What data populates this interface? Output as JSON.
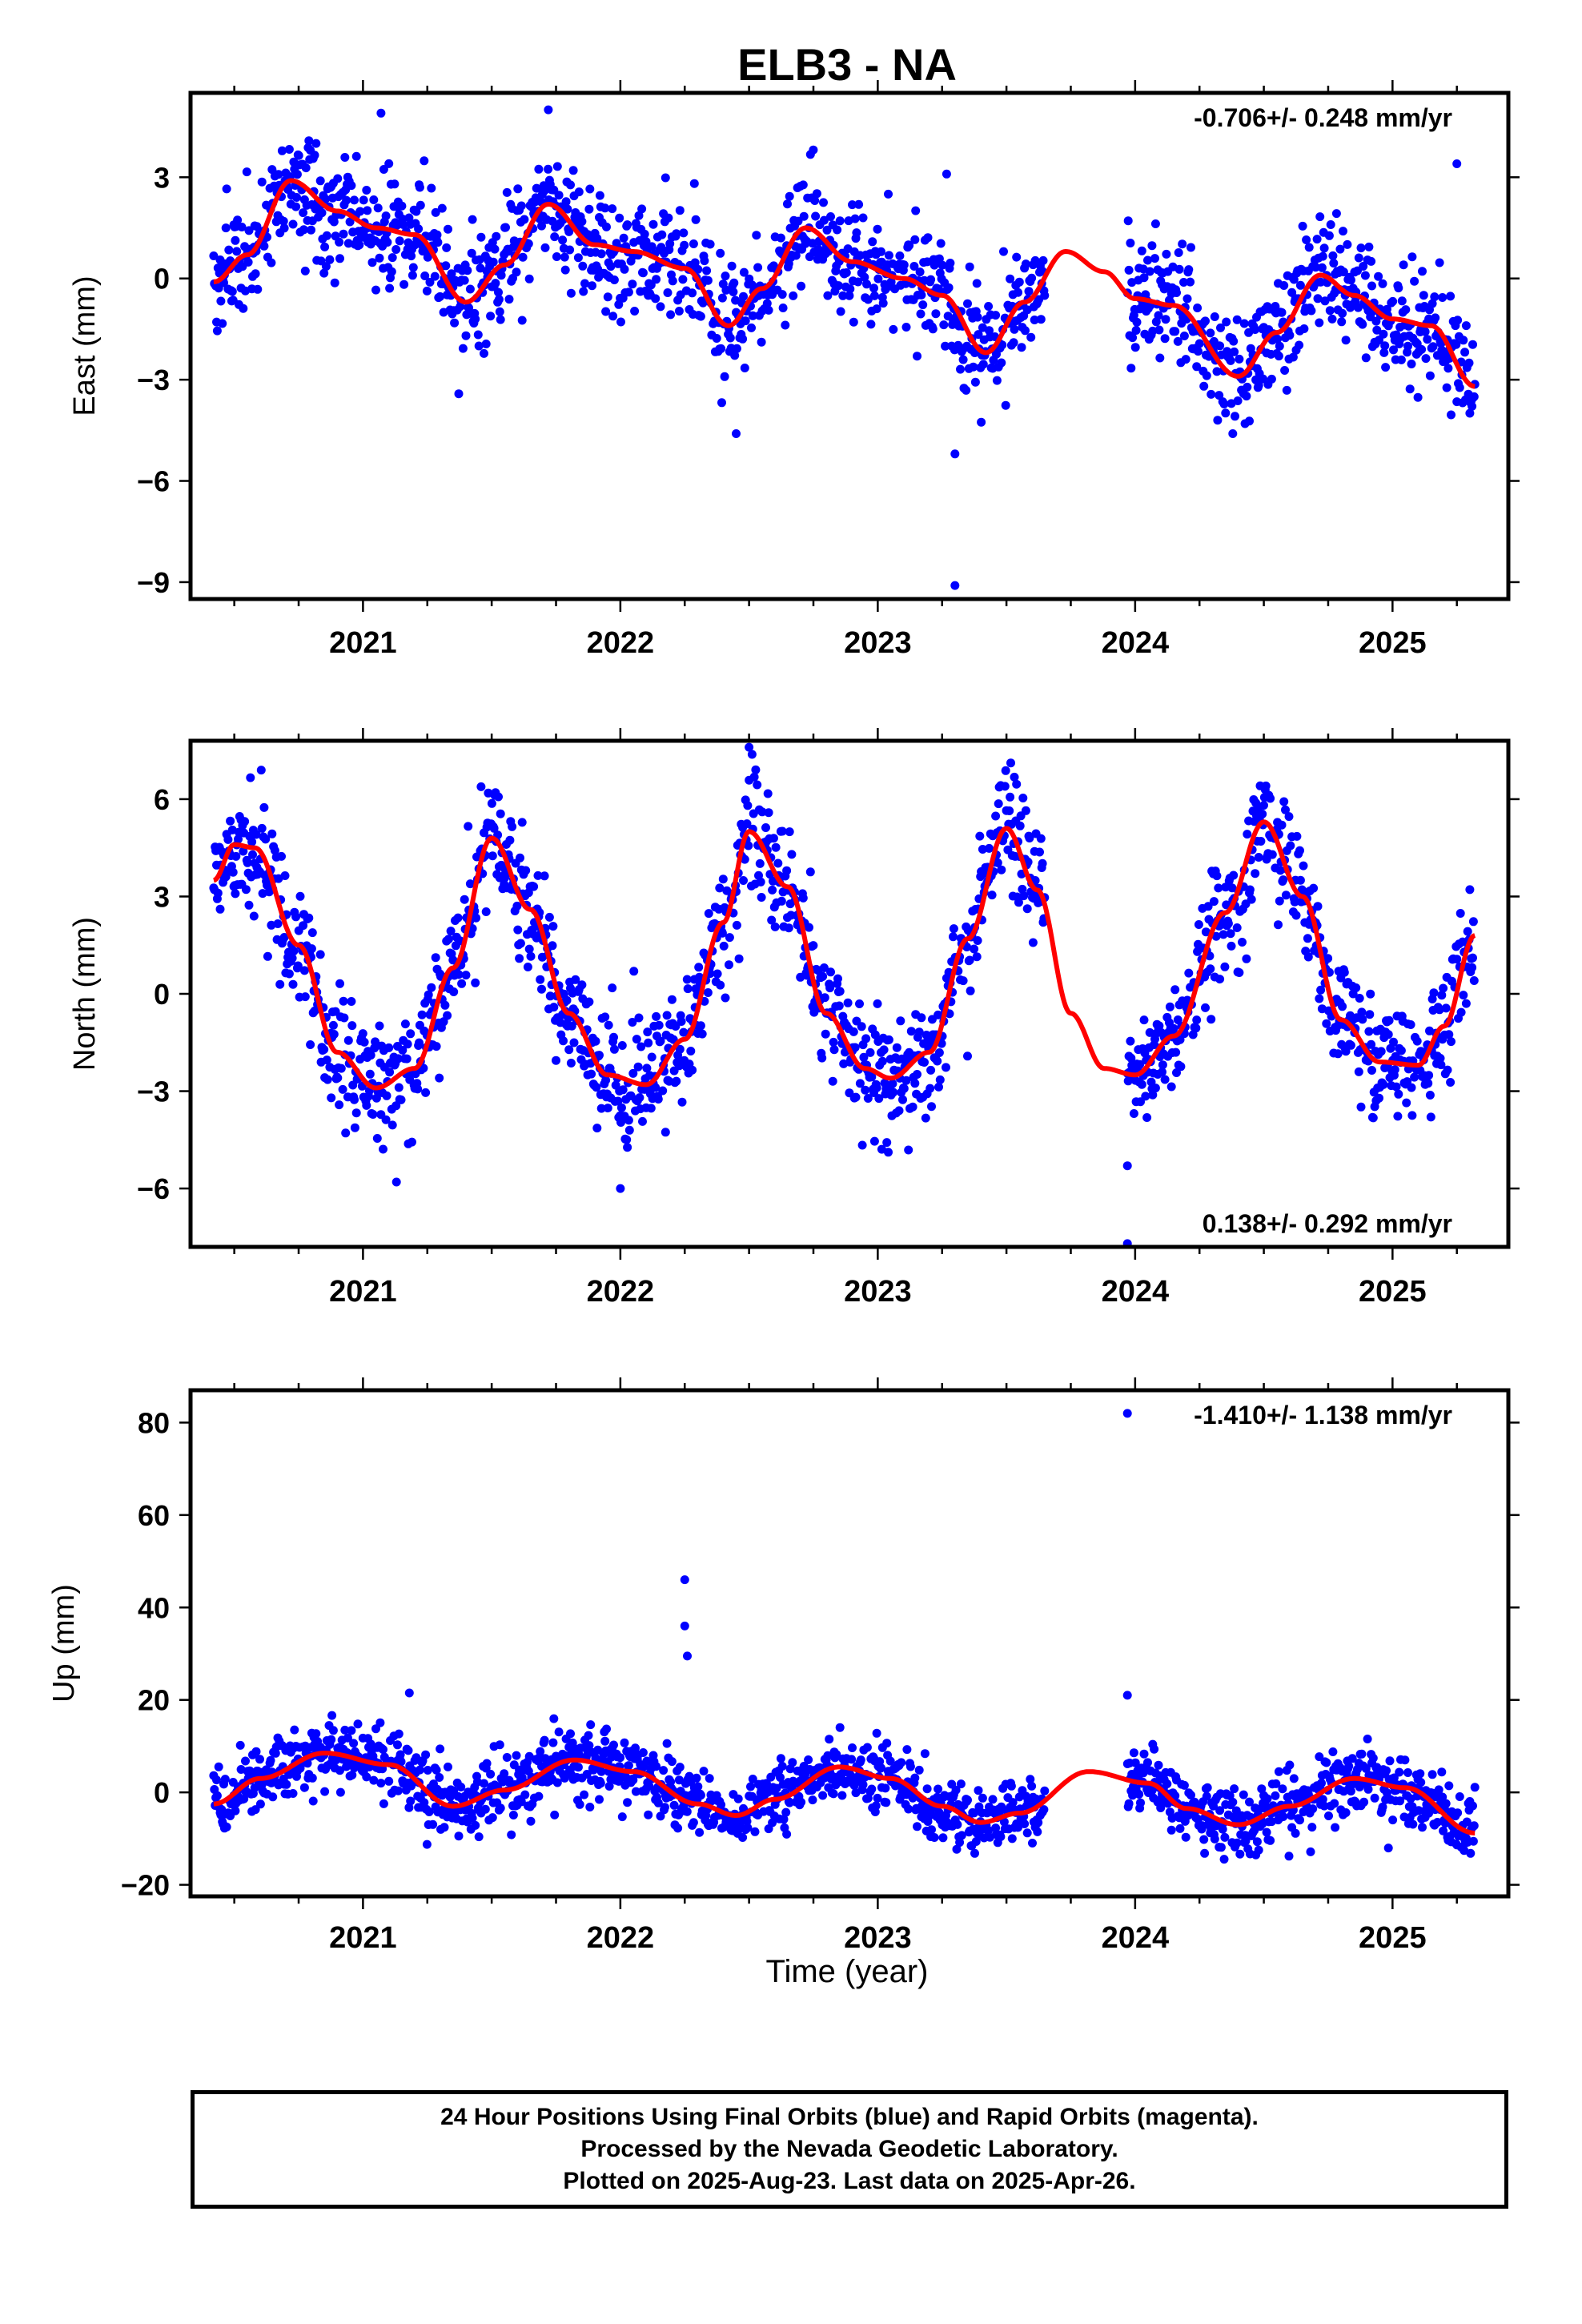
{
  "figure": {
    "title": "ELB3 - NA",
    "x_axis_label": "Time (year)",
    "x_ticks": [
      "2021",
      "2022",
      "2023",
      "2024",
      "2025"
    ],
    "footer_lines": [
      "24 Hour Positions Using Final Orbits (blue) and Rapid Orbits (magenta).",
      "Processed by the Nevada Geodetic Laboratory.",
      "Plotted on 2025-Aug-23. Last data on 2025-Apr-26."
    ],
    "colors": {
      "points": "#0000ff",
      "fit": "#ff0000",
      "frame": "#000000"
    }
  },
  "chart_data": [
    {
      "type": "scatter",
      "ylabel": "East (mm)",
      "rate_text": "-0.706+/- 0.248 mm/yr",
      "rate_position": "top-right",
      "xlim": [
        2020.33,
        2025.45
      ],
      "ylim": [
        -9.5,
        5.5
      ],
      "y_ticks": [
        3,
        0,
        -3,
        -6,
        -9
      ],
      "y_tick_labels": [
        "3",
        "0",
        "−3",
        "−6",
        "−9"
      ],
      "data_start": 2020.42,
      "data_end": 2025.32,
      "gap": [
        2023.65,
        2023.97
      ],
      "scatter_sd": 0.85,
      "fit": [
        [
          2020.42,
          -0.1
        ],
        [
          2020.55,
          0.7
        ],
        [
          2020.72,
          2.9
        ],
        [
          2020.9,
          2.0
        ],
        [
          2021.05,
          1.5
        ],
        [
          2021.2,
          1.3
        ],
        [
          2021.4,
          -0.7
        ],
        [
          2021.55,
          0.4
        ],
        [
          2021.72,
          2.2
        ],
        [
          2021.9,
          1.0
        ],
        [
          2022.05,
          0.8
        ],
        [
          2022.25,
          0.3
        ],
        [
          2022.42,
          -1.4
        ],
        [
          2022.55,
          -0.3
        ],
        [
          2022.72,
          1.5
        ],
        [
          2022.9,
          0.5
        ],
        [
          2023.1,
          0.0
        ],
        [
          2023.25,
          -0.5
        ],
        [
          2023.42,
          -2.2
        ],
        [
          2023.57,
          -0.7
        ],
        [
          2023.73,
          0.8
        ],
        [
          2023.88,
          0.2
        ],
        [
          2024.0,
          -0.6
        ],
        [
          2024.15,
          -0.8
        ],
        [
          2024.4,
          -2.9
        ],
        [
          2024.55,
          -1.6
        ],
        [
          2024.72,
          0.1
        ],
        [
          2024.85,
          -0.5
        ],
        [
          2025.0,
          -1.2
        ],
        [
          2025.15,
          -1.4
        ],
        [
          2025.32,
          -3.2
        ]
      ],
      "outliers": [
        [
          2023.3,
          -9.1
        ],
        [
          2021.07,
          4.9
        ],
        [
          2021.72,
          5.0
        ],
        [
          2025.25,
          3.4
        ],
        [
          2023.3,
          -5.2
        ],
        [
          2022.45,
          -4.6
        ]
      ]
    },
    {
      "type": "scatter",
      "ylabel": "North (mm)",
      "rate_text": "0.138+/- 0.292 mm/yr",
      "rate_position": "bottom-right",
      "xlim": [
        2020.33,
        2025.45
      ],
      "ylim": [
        -7.8,
        7.8
      ],
      "y_ticks": [
        6,
        3,
        0,
        -3,
        -6
      ],
      "y_tick_labels": [
        "6",
        "3",
        "0",
        "−3",
        "−6"
      ],
      "data_start": 2020.42,
      "data_end": 2025.32,
      "gap": [
        2023.65,
        2023.97
      ],
      "scatter_sd": 0.9,
      "fit": [
        [
          2020.42,
          3.5
        ],
        [
          2020.5,
          4.6
        ],
        [
          2020.58,
          4.5
        ],
        [
          2020.75,
          1.5
        ],
        [
          2020.9,
          -1.8
        ],
        [
          2021.05,
          -2.9
        ],
        [
          2021.2,
          -2.3
        ],
        [
          2021.35,
          0.8
        ],
        [
          2021.5,
          4.8
        ],
        [
          2021.65,
          2.6
        ],
        [
          2021.8,
          -0.6
        ],
        [
          2021.95,
          -2.5
        ],
        [
          2022.1,
          -2.8
        ],
        [
          2022.25,
          -1.4
        ],
        [
          2022.4,
          2.2
        ],
        [
          2022.5,
          5.0
        ],
        [
          2022.65,
          3.3
        ],
        [
          2022.8,
          -0.6
        ],
        [
          2022.95,
          -2.3
        ],
        [
          2023.05,
          -2.6
        ],
        [
          2023.2,
          -1.8
        ],
        [
          2023.35,
          1.7
        ],
        [
          2023.5,
          5.1
        ],
        [
          2023.62,
          3.2
        ],
        [
          2023.75,
          -0.6
        ],
        [
          2023.88,
          -2.3
        ],
        [
          2024.0,
          -2.5
        ],
        [
          2024.15,
          -1.3
        ],
        [
          2024.35,
          2.5
        ],
        [
          2024.5,
          5.3
        ],
        [
          2024.65,
          3.0
        ],
        [
          2024.8,
          -0.8
        ],
        [
          2024.95,
          -2.1
        ],
        [
          2025.1,
          -2.2
        ],
        [
          2025.2,
          -1.0
        ],
        [
          2025.32,
          1.8
        ]
      ],
      "outliers": [
        [
          2023.97,
          -7.7
        ],
        [
          2022.5,
          7.6
        ],
        [
          2023.97,
          -5.3
        ],
        [
          2021.13,
          -5.8
        ],
        [
          2022.0,
          -6.0
        ]
      ]
    },
    {
      "type": "scatter",
      "ylabel": "Up (mm)",
      "rate_text": "-1.410+/- 1.138 mm/yr",
      "rate_position": "top-right",
      "xlim": [
        2020.33,
        2025.45
      ],
      "ylim": [
        -22.5,
        87
      ],
      "y_ticks": [
        80,
        60,
        40,
        20,
        0,
        -20
      ],
      "y_tick_labels": [
        "80",
        "60",
        "40",
        "20",
        "0",
        "−20"
      ],
      "data_start": 2020.42,
      "data_end": 2025.32,
      "gap": [
        2023.65,
        2023.97
      ],
      "scatter_sd": 3.6,
      "fit": [
        [
          2020.42,
          -2.5
        ],
        [
          2020.6,
          3.0
        ],
        [
          2020.85,
          8.5
        ],
        [
          2021.1,
          6.0
        ],
        [
          2021.35,
          -3.0
        ],
        [
          2021.55,
          0.5
        ],
        [
          2021.82,
          7.0
        ],
        [
          2022.05,
          4.5
        ],
        [
          2022.3,
          -2.5
        ],
        [
          2022.45,
          -5.0
        ],
        [
          2022.6,
          -1.5
        ],
        [
          2022.85,
          5.5
        ],
        [
          2023.05,
          3.0
        ],
        [
          2023.25,
          -3.0
        ],
        [
          2023.4,
          -6.5
        ],
        [
          2023.55,
          -4.5
        ],
        [
          2023.82,
          4.5
        ],
        [
          2024.05,
          2.0
        ],
        [
          2024.2,
          -3.5
        ],
        [
          2024.4,
          -7.0
        ],
        [
          2024.6,
          -3.0
        ],
        [
          2024.85,
          3.0
        ],
        [
          2025.05,
          1.0
        ],
        [
          2025.32,
          -8.8
        ]
      ],
      "outliers": [
        [
          2023.97,
          82.0
        ],
        [
          2022.25,
          46.0
        ],
        [
          2022.25,
          36.0
        ],
        [
          2022.26,
          29.5
        ],
        [
          2021.18,
          21.5
        ],
        [
          2023.97,
          21.0
        ]
      ]
    }
  ]
}
